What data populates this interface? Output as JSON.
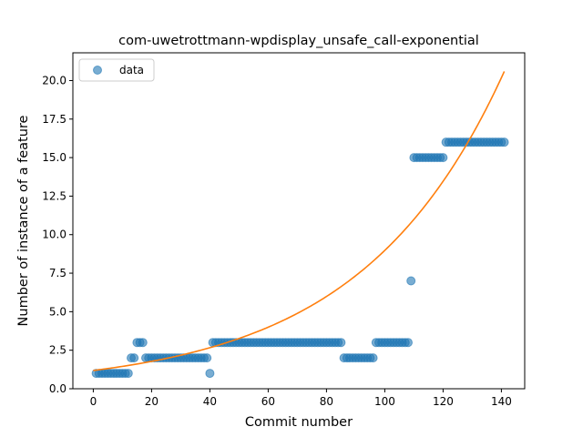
{
  "chart_data": {
    "type": "scatter",
    "title": "com-uwetrottmann-wpdisplay_unsafe_call-exponential",
    "xlabel": "Commit number",
    "ylabel": "Number of instance of a feature",
    "xlim": [
      -7,
      148
    ],
    "ylim": [
      0,
      21.8
    ],
    "x_ticks": [
      0,
      20,
      40,
      60,
      80,
      100,
      120,
      140
    ],
    "x_tick_labels": [
      "0",
      "20",
      "40",
      "60",
      "80",
      "100",
      "120",
      "140"
    ],
    "y_ticks": [
      0,
      2.5,
      5,
      7.5,
      10,
      12.5,
      15,
      17.5,
      20
    ],
    "y_tick_labels": [
      "0.0",
      "2.5",
      "5.0",
      "7.5",
      "10.0",
      "12.5",
      "15.0",
      "17.5",
      "20.0"
    ],
    "grid": false,
    "legend": {
      "position": "top-left",
      "entries": [
        "data"
      ]
    },
    "series": [
      {
        "name": "data",
        "kind": "scatter",
        "color": "#1f77b4",
        "runs": [
          {
            "from": 1,
            "to": 12,
            "y": 1
          },
          {
            "from": 13,
            "to": 14,
            "y": 2
          },
          {
            "from": 15,
            "to": 17,
            "y": 3
          },
          {
            "from": 18,
            "to": 39,
            "y": 2
          },
          {
            "from": 40,
            "to": 40,
            "y": 1
          },
          {
            "from": 41,
            "to": 85,
            "y": 3
          },
          {
            "from": 86,
            "to": 96,
            "y": 2
          },
          {
            "from": 97,
            "to": 108,
            "y": 3
          },
          {
            "from": 109,
            "to": 109,
            "y": 7
          },
          {
            "from": 110,
            "to": 120,
            "y": 15
          },
          {
            "from": 121,
            "to": 141,
            "y": 16
          }
        ]
      },
      {
        "name": "exponential fit",
        "kind": "line",
        "color": "#ff7f0e",
        "x_start": 0,
        "x_end": 141,
        "a": 1.185,
        "b": 0.02025
      }
    ]
  }
}
